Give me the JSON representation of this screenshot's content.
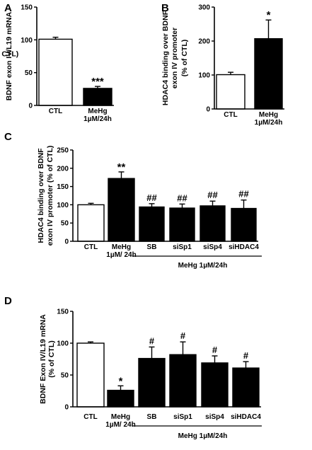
{
  "chart_data": [
    {
      "panel": "A",
      "type": "bar",
      "ylabel": [
        "BDNF exon IV/L19 mRNA",
        "(% of CTL)"
      ],
      "ylim": [
        0,
        150
      ],
      "yticks": [
        0,
        50,
        100,
        150
      ],
      "categories": [
        [
          "CTL"
        ],
        [
          "MeHg",
          "1µM/24h"
        ]
      ],
      "values": [
        101,
        26
      ],
      "errors": [
        3,
        3
      ],
      "fills": [
        "#ffffff",
        "#000000"
      ],
      "significance": [
        "",
        "***"
      ],
      "group_label": ""
    },
    {
      "panel": "B",
      "type": "bar",
      "ylabel": [
        "HDAC4 binding over BDNF",
        "exon IV promoter",
        "(% of CTL)"
      ],
      "ylim": [
        0,
        300
      ],
      "yticks": [
        0,
        100,
        200,
        300
      ],
      "categories": [
        [
          "CTL"
        ],
        [
          "MeHg",
          "1µM/24h"
        ]
      ],
      "values": [
        101,
        207
      ],
      "errors": [
        7,
        55
      ],
      "fills": [
        "#ffffff",
        "#000000"
      ],
      "significance": [
        "",
        "*"
      ],
      "group_label": ""
    },
    {
      "panel": "C",
      "type": "bar",
      "ylabel": [
        "HDAC4 binding  over BDNF",
        "exon IV promoter  (% of CTL)"
      ],
      "ylim": [
        0,
        250
      ],
      "yticks": [
        0,
        50,
        100,
        150,
        200,
        250
      ],
      "categories": [
        [
          "CTL"
        ],
        [
          "MeHg",
          "1µM/ 24h"
        ],
        [
          "SB"
        ],
        [
          "siSp1"
        ],
        [
          "siSp4"
        ],
        [
          "siHDAC4"
        ]
      ],
      "values": [
        100,
        172,
        94,
        91,
        97,
        90
      ],
      "errors": [
        4,
        18,
        9,
        11,
        13,
        23
      ],
      "fills": [
        "#ffffff",
        "#000000",
        "#000000",
        "#000000",
        "#000000",
        "#000000"
      ],
      "significance": [
        "",
        "**",
        "##",
        "##",
        "##",
        "##"
      ],
      "group_label": "MeHg 1µM/24h"
    },
    {
      "panel": "D",
      "type": "bar",
      "ylabel": [
        "BDNF Exon IV/L19 mRNA",
        "(% of CTL)"
      ],
      "ylim": [
        0,
        150
      ],
      "yticks": [
        0,
        50,
        100,
        150
      ],
      "categories": [
        [
          "CTL"
        ],
        [
          "MeHg",
          "1µM/ 24h"
        ],
        [
          "SB"
        ],
        [
          "siSp1"
        ],
        [
          "siSp4"
        ],
        [
          "siHDAC4"
        ]
      ],
      "values": [
        100,
        26,
        76,
        82,
        69,
        61
      ],
      "errors": [
        2,
        7,
        18,
        20,
        11,
        10
      ],
      "fills": [
        "#ffffff",
        "#000000",
        "#000000",
        "#000000",
        "#000000",
        "#000000"
      ],
      "significance": [
        "",
        "*",
        "#",
        "#",
        "#",
        "#"
      ],
      "group_label": "MeHg 1µM/24h"
    }
  ]
}
